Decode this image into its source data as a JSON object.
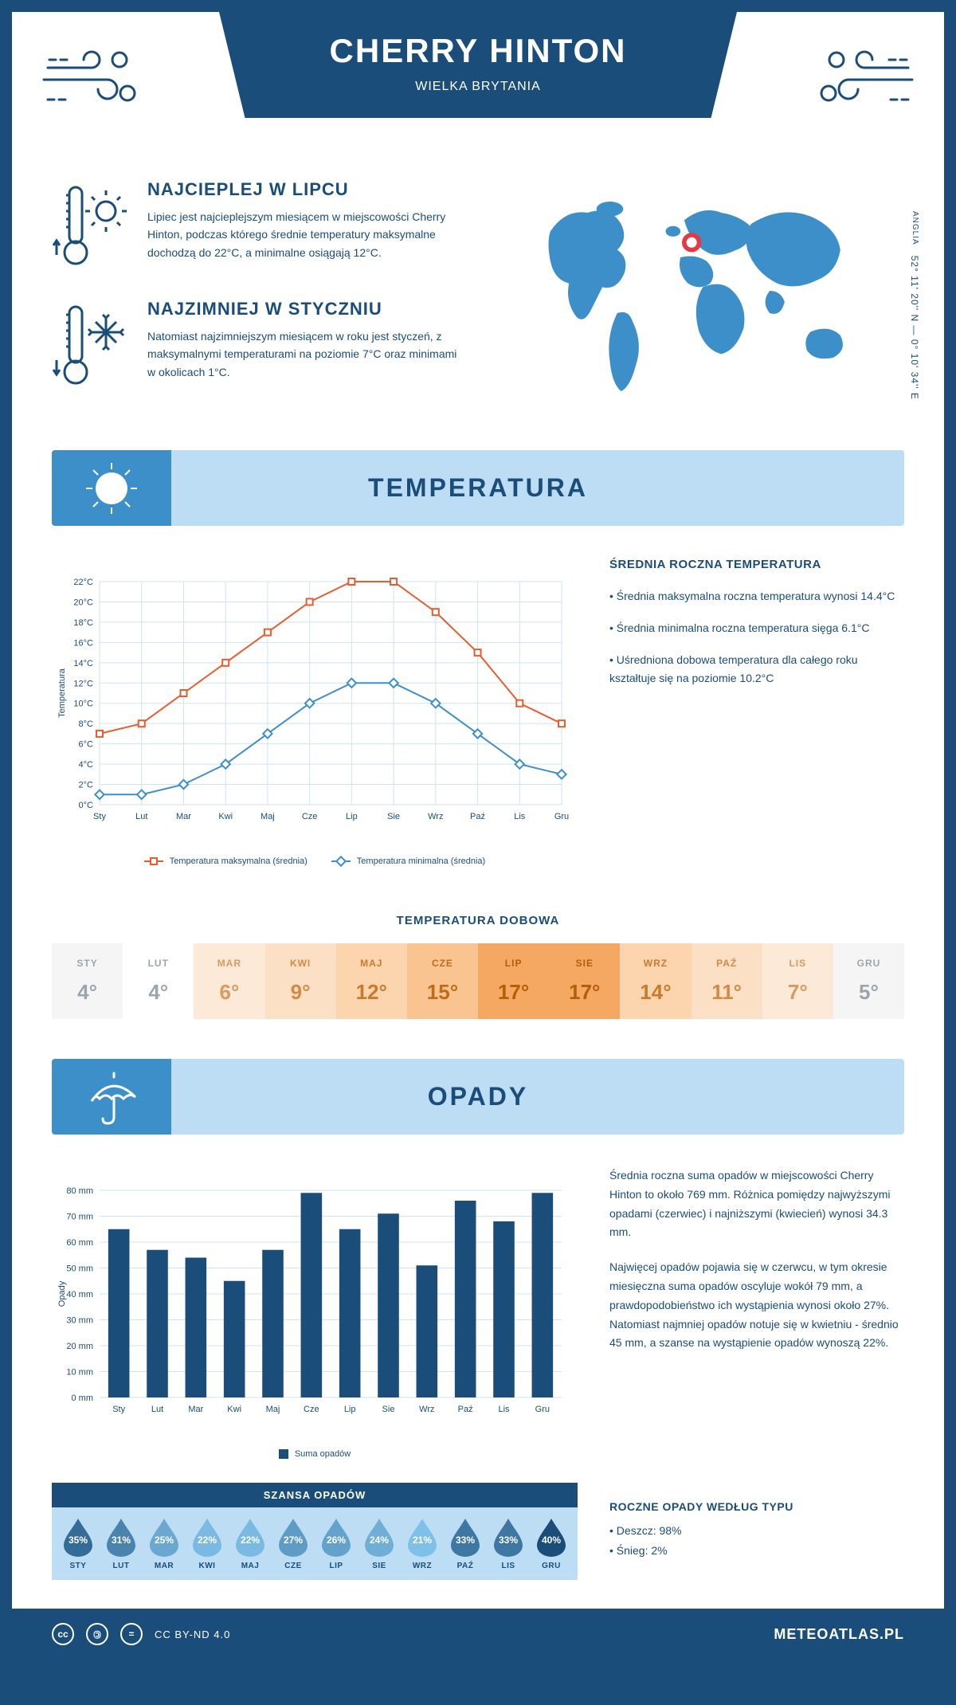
{
  "header": {
    "title": "CHERRY HINTON",
    "subtitle": "WIELKA BRYTANIA"
  },
  "coords": {
    "lat": "52° 11' 20'' N — 0° 10' 34'' E",
    "region": "ANGLIA"
  },
  "intro": {
    "hot": {
      "title": "NAJCIEPLEJ W LIPCU",
      "text": "Lipiec jest najcieplejszym miesiącem w miejscowości Cherry Hinton, podczas którego średnie temperatury maksymalne dochodzą do 22°C, a minimalne osiągają 12°C."
    },
    "cold": {
      "title": "NAJZIMNIEJ W STYCZNIU",
      "text": "Natomiast najzimniejszym miesiącem w roku jest styczeń, z maksymalnymi temperaturami na poziomie 7°C oraz minimami w okolicach 1°C."
    }
  },
  "temp_section": {
    "title": "TEMPERATURA"
  },
  "temp_chart": {
    "type": "line",
    "months": [
      "Sty",
      "Lut",
      "Mar",
      "Kwi",
      "Maj",
      "Cze",
      "Lip",
      "Sie",
      "Wrz",
      "Paź",
      "Lis",
      "Gru"
    ],
    "y_label": "Temperatura",
    "ylim": [
      0,
      22
    ],
    "ytick_step": 2,
    "ytick_suffix": "°C",
    "series": [
      {
        "name": "Temperatura maksymalna (średnia)",
        "color": "#e85d2e",
        "marker": "square",
        "values": [
          7,
          8,
          11,
          14,
          17,
          20,
          22,
          22,
          19,
          15,
          10,
          8
        ]
      },
      {
        "name": "Temperatura minimalna (średnia)",
        "color": "#3d8fc9",
        "marker": "diamond",
        "values": [
          1,
          1,
          2,
          4,
          7,
          10,
          12,
          12,
          10,
          7,
          4,
          3
        ]
      }
    ],
    "grid_color": "#cde4f5",
    "background": "#ffffff"
  },
  "temp_text": {
    "heading": "ŚREDNIA ROCZNA TEMPERATURA",
    "items": [
      "Średnia maksymalna roczna temperatura wynosi 14.4°C",
      "Średnia minimalna roczna temperatura sięga 6.1°C",
      "Uśredniona dobowa temperatura dla całego roku kształtuje się na poziomie 10.2°C"
    ]
  },
  "daily": {
    "heading": "TEMPERATURA DOBOWA",
    "months": [
      "STY",
      "LUT",
      "MAR",
      "KWI",
      "MAJ",
      "CZE",
      "LIP",
      "SIE",
      "WRZ",
      "PAŹ",
      "LIS",
      "GRU"
    ],
    "values": [
      "4°",
      "4°",
      "6°",
      "9°",
      "12°",
      "15°",
      "17°",
      "17°",
      "14°",
      "11°",
      "7°",
      "5°"
    ],
    "colors": {
      "bg": [
        "#f5f5f5",
        "#ffffff",
        "#fce9d8",
        "#fce0c6",
        "#fcd5ae",
        "#f9c48f",
        "#f4a862",
        "#f4a862",
        "#fcd5ae",
        "#fce0c6",
        "#fce9d8",
        "#f5f5f5"
      ],
      "text": [
        "#9aa5b0",
        "#9aa5b0",
        "#d99a5c",
        "#d48a42",
        "#ca7a2c",
        "#c06b18",
        "#b65d07",
        "#b65d07",
        "#ca7a2c",
        "#d48a42",
        "#d99a5c",
        "#9aa5b0"
      ]
    }
  },
  "precip_section": {
    "title": "OPADY"
  },
  "precip_chart": {
    "type": "bar",
    "months": [
      "Sty",
      "Lut",
      "Mar",
      "Kwi",
      "Maj",
      "Cze",
      "Lip",
      "Sie",
      "Wrz",
      "Paź",
      "Lis",
      "Gru"
    ],
    "y_label": "Opady",
    "ylim": [
      0,
      80
    ],
    "ytick_step": 10,
    "ytick_suffix": " mm",
    "values": [
      65,
      57,
      54,
      45,
      57,
      79,
      65,
      71,
      51,
      76,
      68,
      79
    ],
    "bar_color": "#1a4d7a",
    "legend": "Suma opadów",
    "grid_color": "#cde4f5",
    "bar_width": 0.55
  },
  "precip_text": {
    "paragraphs": [
      "Średnia roczna suma opadów w miejscowości Cherry Hinton to około 769 mm. Różnica pomiędzy najwyższymi opadami (czerwiec) i najniższymi (kwiecień) wynosi 34.3 mm.",
      "Najwięcej opadów pojawia się w czerwcu, w tym okresie miesięczna suma opadów oscyluje wokół 79 mm, a prawdopodobieństwo ich wystąpienia wynosi około 27%. Natomiast najmniej opadów notuje się w kwietniu - średnio 45 mm, a szanse na wystąpienie opadów wynoszą 22%."
    ]
  },
  "chance": {
    "heading": "SZANSA OPADÓW",
    "months": [
      "STY",
      "LUT",
      "MAR",
      "KWI",
      "MAJ",
      "CZE",
      "LIP",
      "SIE",
      "WRZ",
      "PAŹ",
      "LIS",
      "GRU"
    ],
    "values": [
      35,
      31,
      25,
      22,
      22,
      27,
      26,
      24,
      21,
      33,
      33,
      40
    ],
    "color_scale": {
      "min_color": "#7fc0e8",
      "max_color": "#1a4d7a"
    }
  },
  "precip_type": {
    "heading": "ROCZNE OPADY WEDŁUG TYPU",
    "items": [
      "Deszcz: 98%",
      "Śnieg: 2%"
    ]
  },
  "footer": {
    "license": "CC BY-ND 4.0",
    "brand": "METEOATLAS.PL"
  }
}
